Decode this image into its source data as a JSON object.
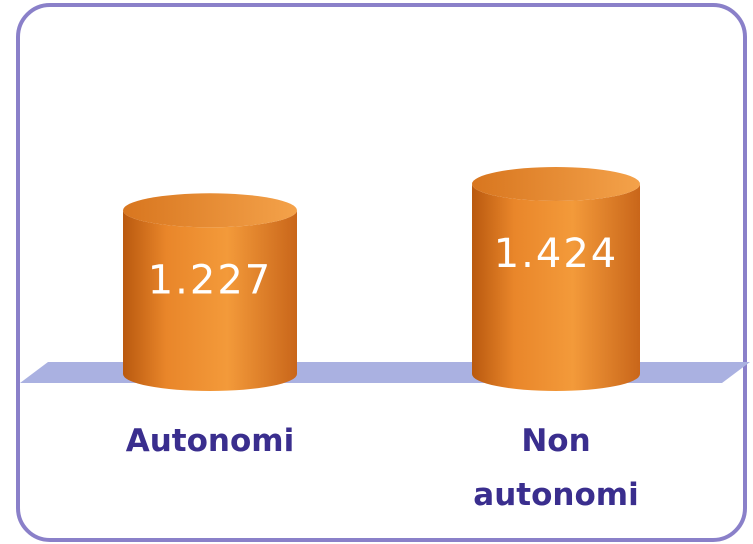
{
  "chart_data": {
    "type": "cylinder",
    "categories": [
      "Autonomi",
      "Non autonomi"
    ],
    "values": [
      1227,
      1424
    ],
    "value_labels": [
      "1.227",
      "1.424"
    ],
    "color": "#f0922c"
  }
}
